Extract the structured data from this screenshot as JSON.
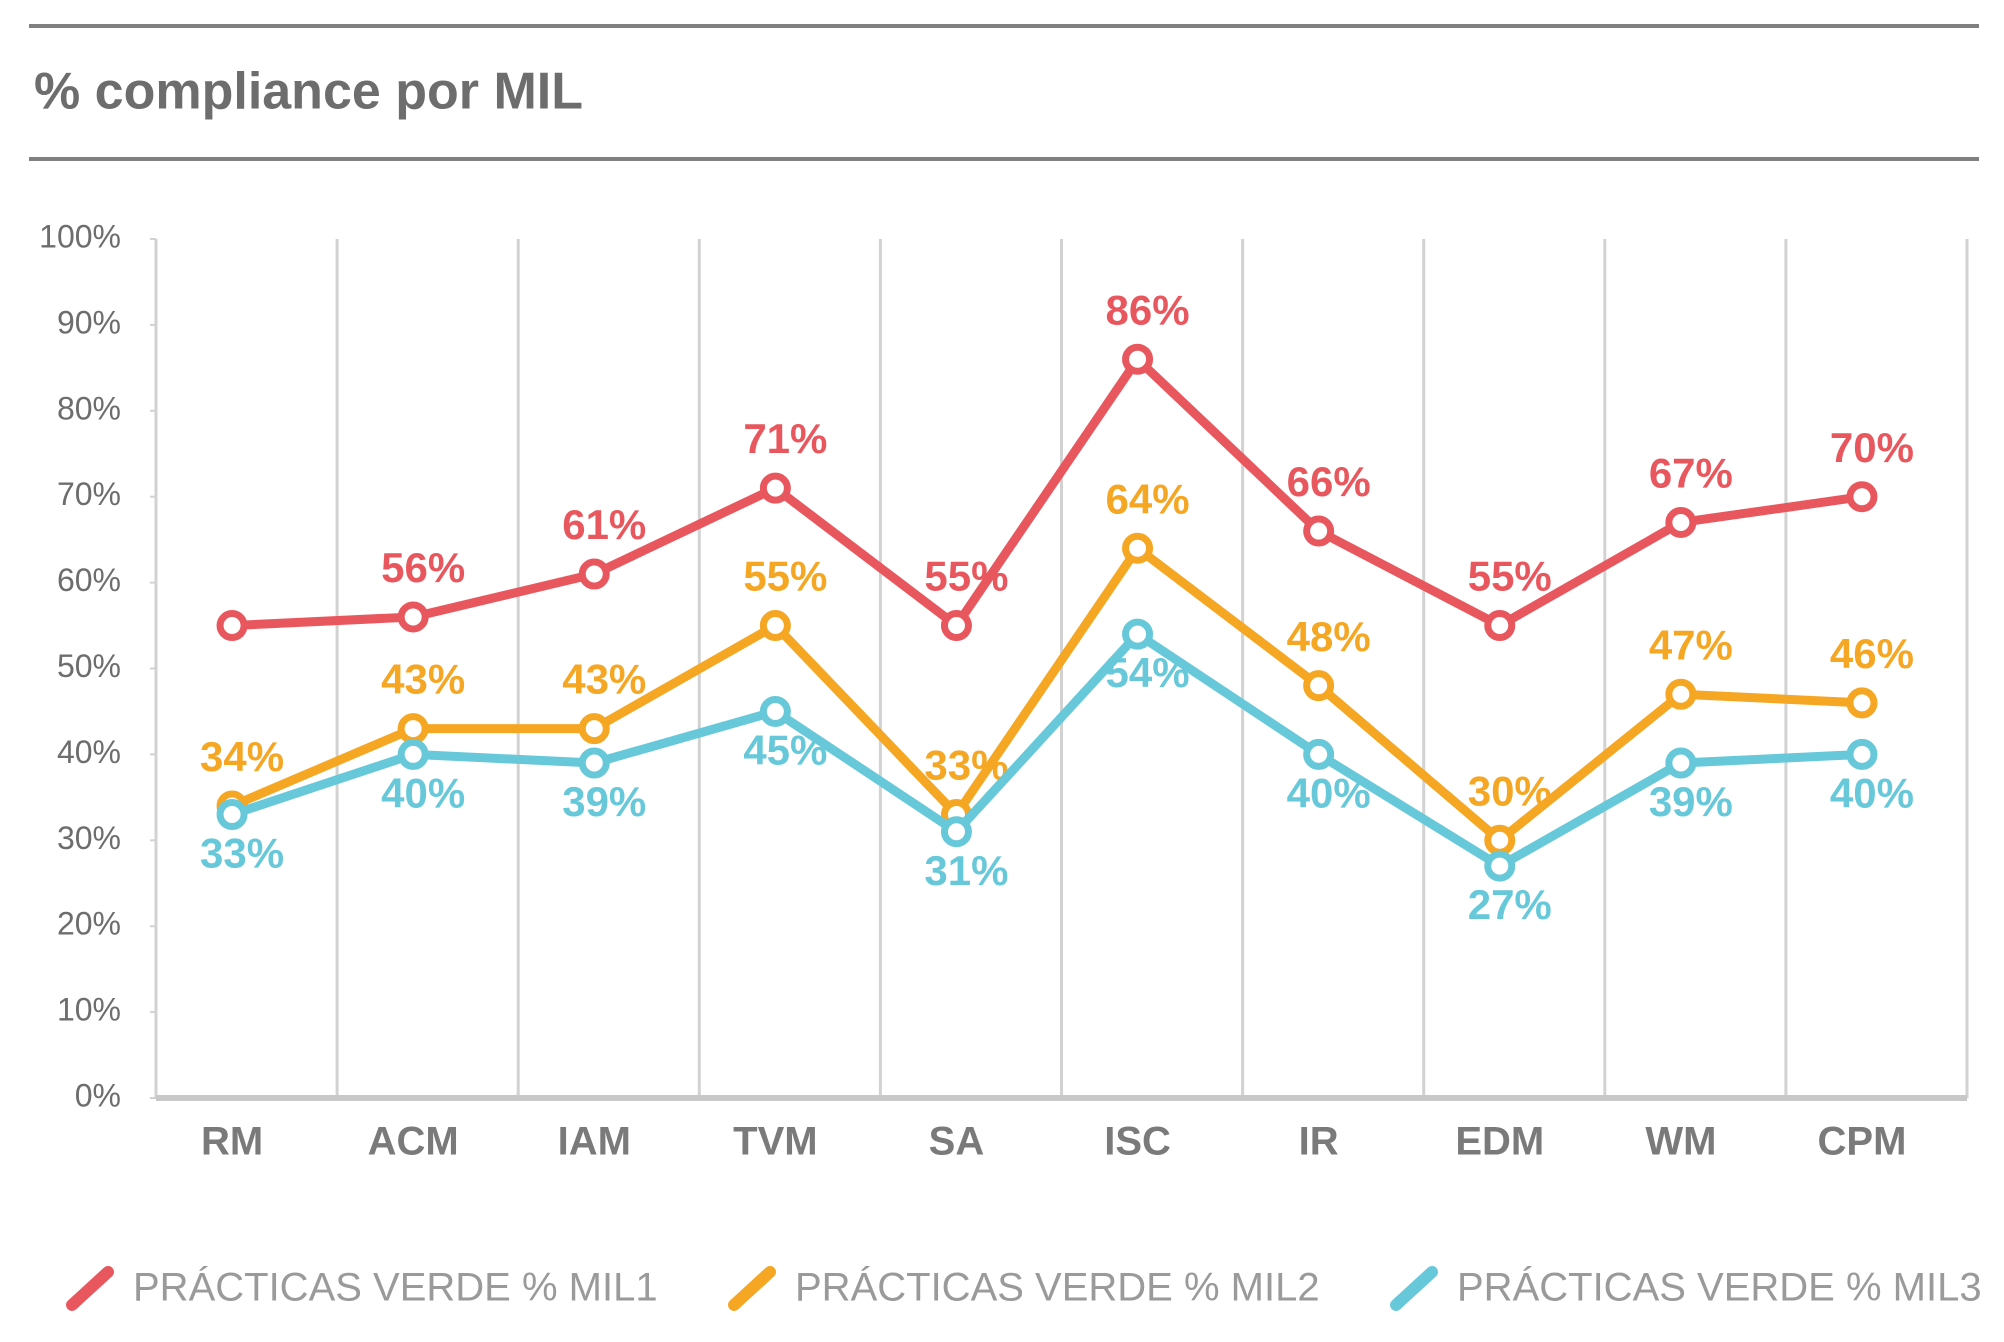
{
  "chart_data": {
    "type": "line",
    "title": "% compliance por MIL",
    "categories": [
      "RM",
      "ACM",
      "IAM",
      "TVM",
      "SA",
      "ISC",
      "IR",
      "EDM",
      "WM",
      "CPM"
    ],
    "series": [
      {
        "name": "PRÁCTICAS VERDE % MIL1",
        "color": "#e9575e",
        "values": [
          55,
          56,
          61,
          71,
          55,
          86,
          66,
          55,
          67,
          70
        ],
        "value_labels": [
          null,
          "56%",
          "61%",
          "71%",
          "55%",
          "86%",
          "66%",
          "55%",
          "67%",
          "70%"
        ]
      },
      {
        "name": "PRÁCTICAS VERDE % MIL2",
        "color": "#f5a623",
        "values": [
          34,
          43,
          43,
          55,
          33,
          64,
          48,
          30,
          47,
          46
        ],
        "value_labels": [
          "34%",
          "43%",
          "43%",
          "55%",
          "33%",
          "64%",
          "48%",
          "30%",
          "47%",
          "46%"
        ]
      },
      {
        "name": "PRÁCTICAS VERDE % MIL3",
        "color": "#66c8d9",
        "values": [
          33,
          40,
          39,
          45,
          31,
          54,
          40,
          27,
          39,
          40
        ],
        "value_labels": [
          "33%",
          "40%",
          "39%",
          "45%",
          "31%",
          "54%",
          "40%",
          "27%",
          "39%",
          "40%"
        ]
      }
    ],
    "ylim": [
      0,
      100
    ],
    "yticks": [
      {
        "value": 0,
        "label": "0%"
      },
      {
        "value": 10,
        "label": "10%"
      },
      {
        "value": 20,
        "label": "20%"
      },
      {
        "value": 30,
        "label": "30%"
      },
      {
        "value": 40,
        "label": "40%"
      },
      {
        "value": 50,
        "label": "50%"
      },
      {
        "value": 60,
        "label": "60%"
      },
      {
        "value": 70,
        "label": "70%"
      },
      {
        "value": 80,
        "label": "80%"
      },
      {
        "value": 90,
        "label": "90%"
      },
      {
        "value": 100,
        "label": "100%"
      }
    ]
  }
}
